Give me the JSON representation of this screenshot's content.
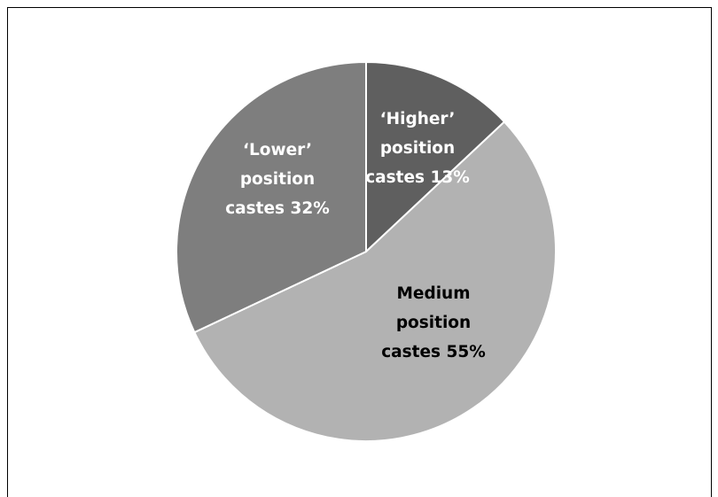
{
  "chart_data": {
    "type": "pie",
    "title": "",
    "start_angle_deg": 0,
    "direction": "clockwise",
    "slices": [
      {
        "label_lines": [
          "‘Higher’",
          "position",
          "castes 13%"
        ],
        "value": 13,
        "color": "#5f5f5f",
        "label_color": "#ffffff"
      },
      {
        "label_lines": [
          "Medium",
          "position",
          "castes 55%"
        ],
        "value": 55,
        "color": "#b2b2b2",
        "label_color": "#000000"
      },
      {
        "label_lines": [
          "‘Lower’",
          "position",
          "castes 32%"
        ],
        "value": 32,
        "color": "#7e7e7e",
        "label_color": "#ffffff"
      }
    ],
    "legend": "none",
    "slice_border_color": "#ffffff"
  }
}
